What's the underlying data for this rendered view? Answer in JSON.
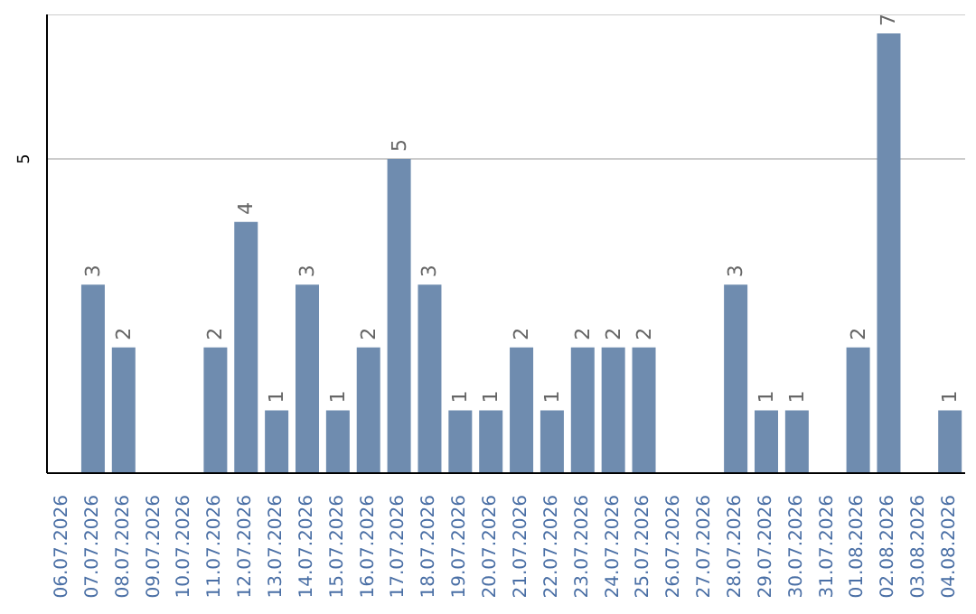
{
  "chart_data": {
    "type": "bar",
    "categories": [
      "06.07.2026",
      "07.07.2026",
      "08.07.2026",
      "09.07.2026",
      "10.07.2026",
      "11.07.2026",
      "12.07.2026",
      "13.07.2026",
      "14.07.2026",
      "15.07.2026",
      "16.07.2026",
      "17.07.2026",
      "18.07.2026",
      "19.07.2026",
      "20.07.2026",
      "21.07.2026",
      "22.07.2026",
      "23.07.2026",
      "24.07.2026",
      "25.07.2026",
      "26.07.2026",
      "27.07.2026",
      "28.07.2026",
      "29.07.2026",
      "30.07.2026",
      "31.07.2026",
      "01.08.2026",
      "02.08.2026",
      "03.08.2026",
      "04.08.2026"
    ],
    "values": [
      null,
      3,
      2,
      null,
      null,
      2,
      4,
      1,
      3,
      1,
      2,
      5,
      3,
      1,
      1,
      2,
      1,
      2,
      2,
      2,
      null,
      null,
      3,
      1,
      1,
      null,
      2,
      7,
      null,
      1
    ],
    "color": "#6f8caf",
    "ylim": [
      0,
      7.3
    ],
    "yticks": [
      5
    ],
    "grid": "y",
    "data_labels": true
  }
}
